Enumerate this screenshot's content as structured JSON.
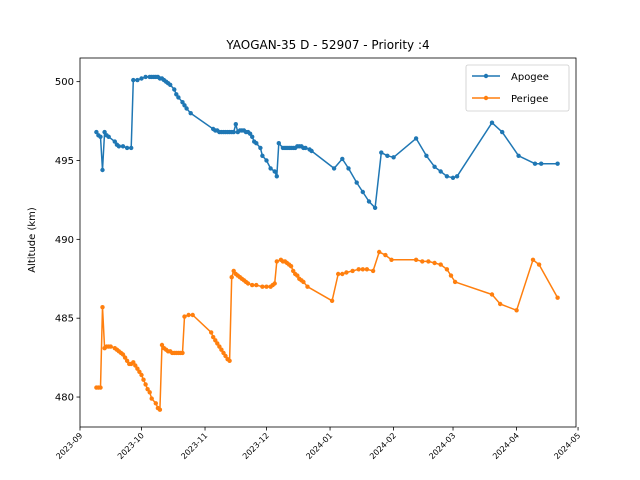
{
  "chart_data": {
    "type": "line",
    "title": "YAOGAN-35 D - 52907 - Priority :4",
    "xlabel": "",
    "ylabel": "Altitude (km)",
    "x_type": "date",
    "xlim": [
      "2023-09-01",
      "2024-04-30"
    ],
    "ylim": [
      478.1,
      501.5
    ],
    "x_ticks": [
      "2023-09",
      "2023-10",
      "2023-11",
      "2023-12",
      "2024-01",
      "2024-02",
      "2024-03",
      "2024-04",
      "2024-05"
    ],
    "y_ticks": [
      480,
      485,
      490,
      495,
      500
    ],
    "grid": false,
    "legend_position": "top-right",
    "series": [
      {
        "name": "Apogee",
        "color": "#1f77b4",
        "points": [
          [
            "2023-09-09",
            496.8
          ],
          [
            "2023-09-10",
            496.6
          ],
          [
            "2023-09-11",
            496.5
          ],
          [
            "2023-09-12",
            494.4
          ],
          [
            "2023-09-13",
            496.8
          ],
          [
            "2023-09-14",
            496.6
          ],
          [
            "2023-09-15",
            496.5
          ],
          [
            "2023-09-18",
            496.2
          ],
          [
            "2023-09-19",
            496.0
          ],
          [
            "2023-09-20",
            495.9
          ],
          [
            "2023-09-22",
            495.9
          ],
          [
            "2023-09-24",
            495.8
          ],
          [
            "2023-09-26",
            495.8
          ],
          [
            "2023-09-27",
            500.1
          ],
          [
            "2023-09-29",
            500.1
          ],
          [
            "2023-10-01",
            500.2
          ],
          [
            "2023-10-03",
            500.3
          ],
          [
            "2023-10-05",
            500.3
          ],
          [
            "2023-10-06",
            500.3
          ],
          [
            "2023-10-07",
            500.3
          ],
          [
            "2023-10-08",
            500.3
          ],
          [
            "2023-10-09",
            500.3
          ],
          [
            "2023-10-10",
            500.2
          ],
          [
            "2023-10-11",
            500.2
          ],
          [
            "2023-10-12",
            500.1
          ],
          [
            "2023-10-13",
            500.0
          ],
          [
            "2023-10-14",
            499.9
          ],
          [
            "2023-10-15",
            499.8
          ],
          [
            "2023-10-17",
            499.5
          ],
          [
            "2023-10-18",
            499.2
          ],
          [
            "2023-10-19",
            499.0
          ],
          [
            "2023-10-21",
            498.7
          ],
          [
            "2023-10-22",
            498.5
          ],
          [
            "2023-10-23",
            498.3
          ],
          [
            "2023-10-25",
            498.0
          ],
          [
            "2023-11-05",
            497.0
          ],
          [
            "2023-11-06",
            496.9
          ],
          [
            "2023-11-07",
            496.9
          ],
          [
            "2023-11-08",
            496.8
          ],
          [
            "2023-11-09",
            496.8
          ],
          [
            "2023-11-10",
            496.8
          ],
          [
            "2023-11-11",
            496.8
          ],
          [
            "2023-11-12",
            496.8
          ],
          [
            "2023-11-13",
            496.8
          ],
          [
            "2023-11-14",
            496.8
          ],
          [
            "2023-11-15",
            496.8
          ],
          [
            "2023-11-16",
            497.3
          ],
          [
            "2023-11-17",
            496.8
          ],
          [
            "2023-11-18",
            496.9
          ],
          [
            "2023-11-19",
            496.9
          ],
          [
            "2023-11-20",
            496.9
          ],
          [
            "2023-11-21",
            496.8
          ],
          [
            "2023-11-22",
            496.8
          ],
          [
            "2023-11-23",
            496.7
          ],
          [
            "2023-11-24",
            496.5
          ],
          [
            "2023-11-25",
            496.2
          ],
          [
            "2023-11-26",
            496.1
          ],
          [
            "2023-11-28",
            495.8
          ],
          [
            "2023-11-29",
            495.3
          ],
          [
            "2023-12-01",
            495.0
          ],
          [
            "2023-12-03",
            494.5
          ],
          [
            "2023-12-05",
            494.3
          ],
          [
            "2023-12-06",
            494.0
          ],
          [
            "2023-12-07",
            496.1
          ],
          [
            "2023-12-09",
            495.8
          ],
          [
            "2023-12-10",
            495.8
          ],
          [
            "2023-12-11",
            495.8
          ],
          [
            "2023-12-12",
            495.8
          ],
          [
            "2023-12-13",
            495.8
          ],
          [
            "2023-12-14",
            495.8
          ],
          [
            "2023-12-15",
            495.8
          ],
          [
            "2023-12-16",
            495.9
          ],
          [
            "2023-12-17",
            495.9
          ],
          [
            "2023-12-18",
            495.9
          ],
          [
            "2023-12-19",
            495.8
          ],
          [
            "2023-12-20",
            495.8
          ],
          [
            "2023-12-22",
            495.7
          ],
          [
            "2023-12-23",
            495.6
          ],
          [
            "2024-01-03",
            494.5
          ],
          [
            "2024-01-07",
            495.1
          ],
          [
            "2024-01-10",
            494.5
          ],
          [
            "2024-01-14",
            493.6
          ],
          [
            "2024-01-17",
            493.0
          ],
          [
            "2024-01-20",
            492.4
          ],
          [
            "2024-01-23",
            492.0
          ],
          [
            "2024-01-26",
            495.5
          ],
          [
            "2024-01-29",
            495.3
          ],
          [
            "2024-02-01",
            495.2
          ],
          [
            "2024-02-12",
            496.4
          ],
          [
            "2024-02-17",
            495.3
          ],
          [
            "2024-02-21",
            494.6
          ],
          [
            "2024-02-24",
            494.3
          ],
          [
            "2024-02-27",
            494.0
          ],
          [
            "2024-03-01",
            493.9
          ],
          [
            "2024-03-03",
            494.0
          ],
          [
            "2024-03-20",
            497.4
          ],
          [
            "2024-03-25",
            496.8
          ],
          [
            "2024-04-02",
            495.3
          ],
          [
            "2024-04-10",
            494.8
          ],
          [
            "2024-04-13",
            494.8
          ],
          [
            "2024-04-21",
            494.8
          ]
        ]
      },
      {
        "name": "Perigee",
        "color": "#ff7f0e",
        "points": [
          [
            "2023-09-09",
            480.6
          ],
          [
            "2023-09-10",
            480.6
          ],
          [
            "2023-09-11",
            480.6
          ],
          [
            "2023-09-12",
            485.7
          ],
          [
            "2023-09-13",
            483.1
          ],
          [
            "2023-09-14",
            483.2
          ],
          [
            "2023-09-15",
            483.2
          ],
          [
            "2023-09-16",
            483.2
          ],
          [
            "2023-09-18",
            483.1
          ],
          [
            "2023-09-19",
            483.0
          ],
          [
            "2023-09-20",
            482.9
          ],
          [
            "2023-09-21",
            482.8
          ],
          [
            "2023-09-22",
            482.7
          ],
          [
            "2023-09-23",
            482.5
          ],
          [
            "2023-09-24",
            482.3
          ],
          [
            "2023-09-25",
            482.1
          ],
          [
            "2023-09-26",
            482.1
          ],
          [
            "2023-09-27",
            482.2
          ],
          [
            "2023-09-28",
            482.0
          ],
          [
            "2023-09-29",
            481.8
          ],
          [
            "2023-09-30",
            481.6
          ],
          [
            "2023-10-01",
            481.4
          ],
          [
            "2023-10-02",
            481.1
          ],
          [
            "2023-10-03",
            480.8
          ],
          [
            "2023-10-04",
            480.5
          ],
          [
            "2023-10-05",
            480.3
          ],
          [
            "2023-10-06",
            479.9
          ],
          [
            "2023-10-08",
            479.6
          ],
          [
            "2023-10-09",
            479.3
          ],
          [
            "2023-10-10",
            479.2
          ],
          [
            "2023-10-11",
            483.3
          ],
          [
            "2023-10-12",
            483.1
          ],
          [
            "2023-10-13",
            483.0
          ],
          [
            "2023-10-14",
            482.9
          ],
          [
            "2023-10-15",
            482.9
          ],
          [
            "2023-10-16",
            482.8
          ],
          [
            "2023-10-17",
            482.8
          ],
          [
            "2023-10-18",
            482.8
          ],
          [
            "2023-10-19",
            482.8
          ],
          [
            "2023-10-20",
            482.8
          ],
          [
            "2023-10-21",
            482.8
          ],
          [
            "2023-10-22",
            485.1
          ],
          [
            "2023-10-24",
            485.2
          ],
          [
            "2023-10-26",
            485.2
          ],
          [
            "2023-11-04",
            484.1
          ],
          [
            "2023-11-05",
            483.8
          ],
          [
            "2023-11-06",
            483.6
          ],
          [
            "2023-11-07",
            483.4
          ],
          [
            "2023-11-08",
            483.2
          ],
          [
            "2023-11-09",
            483.0
          ],
          [
            "2023-11-10",
            482.8
          ],
          [
            "2023-11-11",
            482.6
          ],
          [
            "2023-11-12",
            482.4
          ],
          [
            "2023-11-13",
            482.3
          ],
          [
            "2023-11-14",
            487.6
          ],
          [
            "2023-11-15",
            488.0
          ],
          [
            "2023-11-16",
            487.8
          ],
          [
            "2023-11-17",
            487.7
          ],
          [
            "2023-11-18",
            487.6
          ],
          [
            "2023-11-19",
            487.5
          ],
          [
            "2023-11-20",
            487.4
          ],
          [
            "2023-11-21",
            487.3
          ],
          [
            "2023-11-22",
            487.2
          ],
          [
            "2023-11-24",
            487.1
          ],
          [
            "2023-11-26",
            487.1
          ],
          [
            "2023-11-29",
            487.0
          ],
          [
            "2023-12-01",
            487.0
          ],
          [
            "2023-12-03",
            487.0
          ],
          [
            "2023-12-04",
            487.1
          ],
          [
            "2023-12-05",
            487.2
          ],
          [
            "2023-12-06",
            488.6
          ],
          [
            "2023-12-08",
            488.7
          ],
          [
            "2023-12-09",
            488.6
          ],
          [
            "2023-12-10",
            488.6
          ],
          [
            "2023-12-11",
            488.5
          ],
          [
            "2023-12-12",
            488.4
          ],
          [
            "2023-12-13",
            488.3
          ],
          [
            "2023-12-14",
            488.0
          ],
          [
            "2023-12-15",
            487.8
          ],
          [
            "2023-12-16",
            487.7
          ],
          [
            "2023-12-17",
            487.5
          ],
          [
            "2023-12-18",
            487.4
          ],
          [
            "2023-12-19",
            487.3
          ],
          [
            "2023-12-21",
            487.0
          ],
          [
            "2024-01-02",
            486.1
          ],
          [
            "2024-01-05",
            487.8
          ],
          [
            "2024-01-07",
            487.8
          ],
          [
            "2024-01-09",
            487.9
          ],
          [
            "2024-01-12",
            488.0
          ],
          [
            "2024-01-15",
            488.1
          ],
          [
            "2024-01-17",
            488.1
          ],
          [
            "2024-01-19",
            488.1
          ],
          [
            "2024-01-22",
            488.0
          ],
          [
            "2024-01-25",
            489.2
          ],
          [
            "2024-01-28",
            489.0
          ],
          [
            "2024-01-31",
            488.7
          ],
          [
            "2024-02-12",
            488.7
          ],
          [
            "2024-02-15",
            488.6
          ],
          [
            "2024-02-18",
            488.6
          ],
          [
            "2024-02-21",
            488.5
          ],
          [
            "2024-02-24",
            488.4
          ],
          [
            "2024-02-27",
            488.1
          ],
          [
            "2024-02-29",
            487.7
          ],
          [
            "2024-03-02",
            487.3
          ],
          [
            "2024-03-20",
            486.5
          ],
          [
            "2024-03-24",
            485.9
          ],
          [
            "2024-04-01",
            485.5
          ],
          [
            "2024-04-09",
            488.7
          ],
          [
            "2024-04-12",
            488.4
          ],
          [
            "2024-04-21",
            486.3
          ]
        ]
      }
    ]
  }
}
